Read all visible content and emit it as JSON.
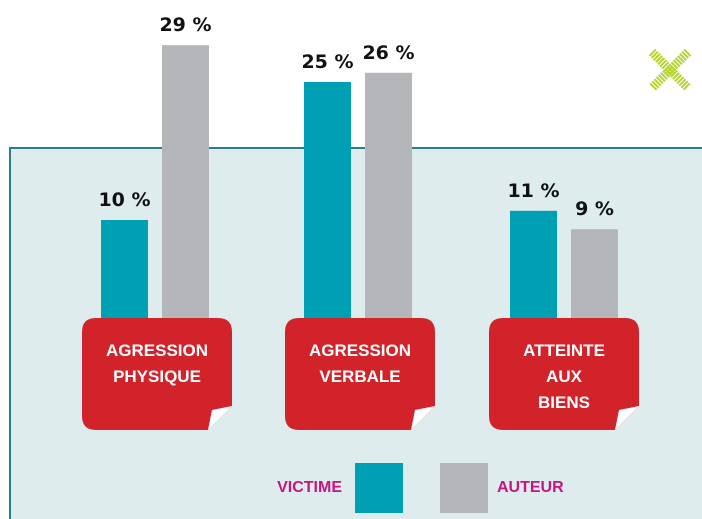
{
  "chart_data": {
    "type": "bar",
    "categories": [
      "AGRESSION PHYSIQUE",
      "AGRESSION VERBALE",
      "ATTEINTE AUX BIENS"
    ],
    "series": [
      {
        "name": "VICTIME",
        "color": "#00a0b4",
        "values": [
          10,
          25,
          11
        ],
        "value_labels": [
          "10 %",
          "25 %",
          "11 %"
        ]
      },
      {
        "name": "AUTEUR",
        "color": "#b5b6b9",
        "values": [
          29,
          26,
          9
        ],
        "value_labels": [
          "29 %",
          "26 %",
          "9 %"
        ]
      }
    ]
  }
}
